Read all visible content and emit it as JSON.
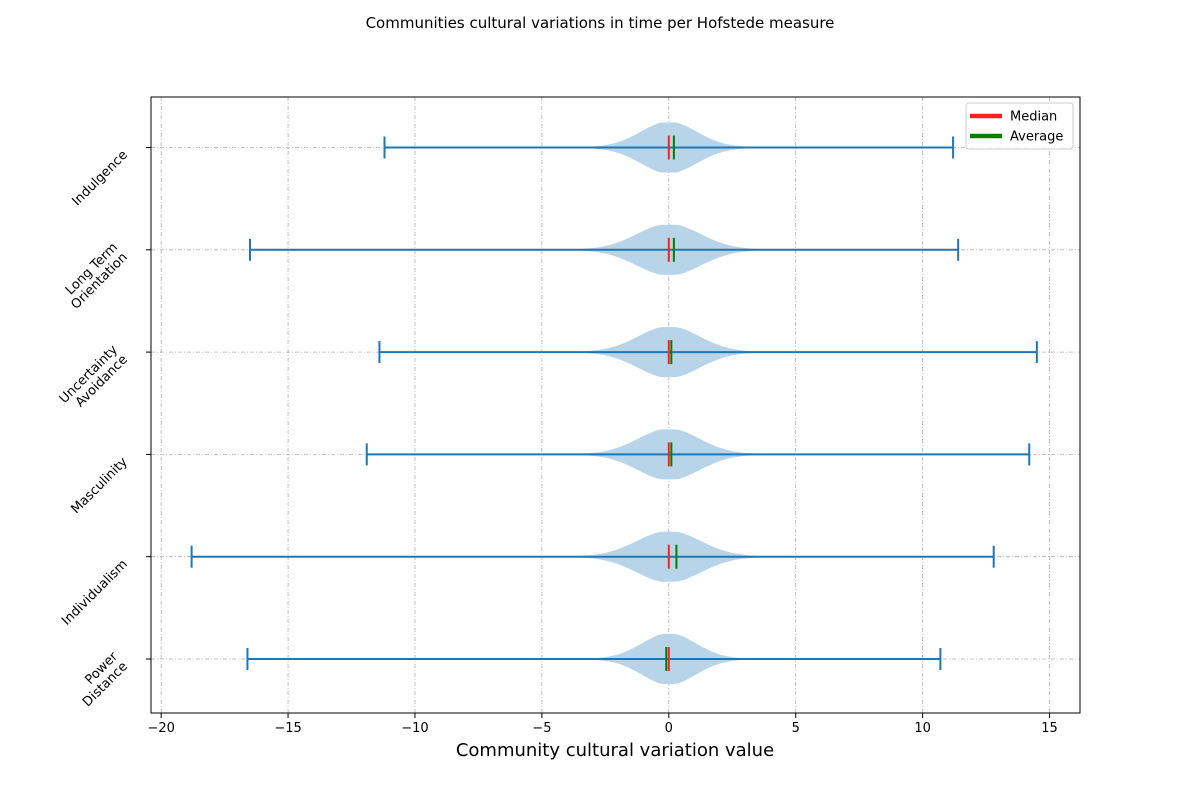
{
  "chart_data": {
    "type": "violin",
    "orientation": "horizontal",
    "title": "Communities cultural variations in time per Hofstede measure",
    "xlabel": "Community cultural variation value",
    "ylabel": "",
    "xlim": [
      -20.4,
      16.2
    ],
    "xticks": [
      -20,
      -15,
      -10,
      -5,
      0,
      5,
      10,
      15
    ],
    "xtick_labels": [
      "−20",
      "−15",
      "−10",
      "−5",
      "0",
      "5",
      "10",
      "15"
    ],
    "grid": true,
    "legend_position": "upper right",
    "legend": [
      {
        "label": "Median",
        "color": "#ff2020"
      },
      {
        "label": "Average",
        "color": "#008000"
      }
    ],
    "colors": {
      "body": "#b8d4e8",
      "whisker": "#1f77b4",
      "median": "#ff2020",
      "average": "#008000"
    },
    "measures": [
      {
        "label_lines": [
          "Power",
          "Distance"
        ],
        "min": -16.6,
        "max": 10.7,
        "median": 0.0,
        "average": -0.1,
        "spread": 1.05,
        "body_width": 0.5
      },
      {
        "label_lines": [
          "Individualism"
        ],
        "min": -18.8,
        "max": 12.8,
        "median": 0.0,
        "average": 0.3,
        "spread": 1.25,
        "body_width": 0.5
      },
      {
        "label_lines": [
          "Masculinity"
        ],
        "min": -11.9,
        "max": 14.2,
        "median": 0.0,
        "average": 0.1,
        "spread": 1.2,
        "body_width": 0.5
      },
      {
        "label_lines": [
          "Uncertainty",
          "Avoidance"
        ],
        "min": -11.4,
        "max": 14.5,
        "median": 0.0,
        "average": 0.1,
        "spread": 1.2,
        "body_width": 0.5
      },
      {
        "label_lines": [
          "Long Term",
          "Orientation"
        ],
        "min": -16.5,
        "max": 11.4,
        "median": 0.0,
        "average": 0.2,
        "spread": 1.25,
        "body_width": 0.5
      },
      {
        "label_lines": [
          "Indulgence"
        ],
        "min": -11.2,
        "max": 11.2,
        "median": 0.0,
        "average": 0.2,
        "spread": 1.1,
        "body_width": 0.5
      }
    ]
  }
}
